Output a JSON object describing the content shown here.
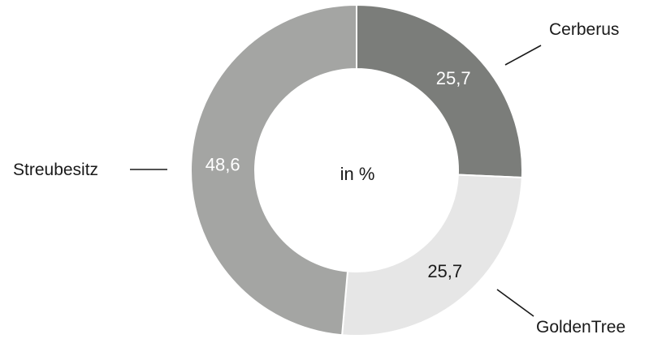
{
  "chart_data": {
    "type": "pie",
    "center_label": "in %",
    "slices": [
      {
        "label": "Cerberus",
        "value": 25.7,
        "value_label": "25,7",
        "color": "#7b7d7a",
        "label_color": "#ffffff"
      },
      {
        "label": "GoldenTree",
        "value": 25.7,
        "value_label": "25,7",
        "color": "#e6e6e6",
        "label_color": "#1a1a1a"
      },
      {
        "label": "Streubesitz",
        "value": 48.6,
        "value_label": "48,6",
        "color": "#a4a5a3",
        "label_color": "#ffffff"
      }
    ]
  }
}
